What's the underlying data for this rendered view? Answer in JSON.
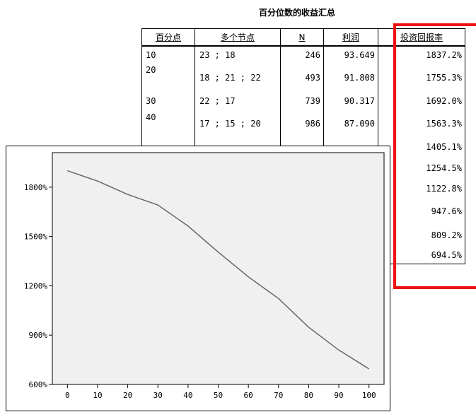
{
  "table": {
    "title": "百分位数的收益汇总",
    "headers": [
      "百分点",
      "多个节点",
      "N",
      "利润",
      "投资回报率"
    ],
    "rows": [
      {
        "percentile": "10",
        "nodes": "23 ;  18",
        "n": "246",
        "profit": "93.649",
        "roi": "1837.2%"
      },
      {
        "percentile": "20",
        "nodes": "18 ;  21 ;  22",
        "n": "493",
        "profit": "91.808",
        "roi": "1755.3%"
      },
      {
        "percentile": "30",
        "nodes": "22 ;  17",
        "n": "739",
        "profit": "90.317",
        "roi": "1692.0%"
      },
      {
        "percentile": "40",
        "nodes": "17 ;  15 ;  20",
        "n": "986",
        "profit": "87.090",
        "roi": "1563.3%"
      },
      {
        "percentile": "",
        "nodes": "",
        "n": "",
        "profit": "",
        "roi": "1405.1%"
      },
      {
        "percentile": "",
        "nodes": "",
        "n": "",
        "profit": "",
        "roi": "1254.5%"
      },
      {
        "percentile": "",
        "nodes": "",
        "n": "",
        "profit": "",
        "roi": "1122.8%"
      },
      {
        "percentile": "",
        "nodes": "",
        "n": "",
        "profit": "",
        "roi": "947.6%"
      },
      {
        "percentile": "",
        "nodes": "",
        "n": "",
        "profit": "",
        "roi": "809.2%"
      },
      {
        "percentile": "",
        "nodes": "",
        "n": "",
        "profit": "",
        "roi": "694.5%"
      }
    ]
  },
  "highlight_color": "#ee1111",
  "chart_data": {
    "type": "line",
    "x": [
      0,
      10,
      20,
      30,
      40,
      50,
      60,
      70,
      80,
      90,
      100
    ],
    "series": [
      {
        "values": [
          1900,
          1837.2,
          1755.3,
          1692.0,
          1563.3,
          1405.1,
          1254.5,
          1122.8,
          947.6,
          809.2,
          694.5
        ]
      }
    ],
    "xticks": [
      "0",
      "10",
      "20",
      "30",
      "40",
      "50",
      "60",
      "70",
      "80",
      "90",
      "100"
    ],
    "yticks": [
      {
        "value": 600,
        "label": "600%"
      },
      {
        "value": 900,
        "label": "900%"
      },
      {
        "value": 1200,
        "label": "1200%"
      },
      {
        "value": 1500,
        "label": "1500%"
      },
      {
        "value": 1800,
        "label": "1800%"
      }
    ],
    "xlim": [
      -5,
      105
    ],
    "ylim": [
      600,
      2010
    ],
    "line_color": "#666666",
    "plot_background": "#f0f0f0",
    "grid": false
  }
}
